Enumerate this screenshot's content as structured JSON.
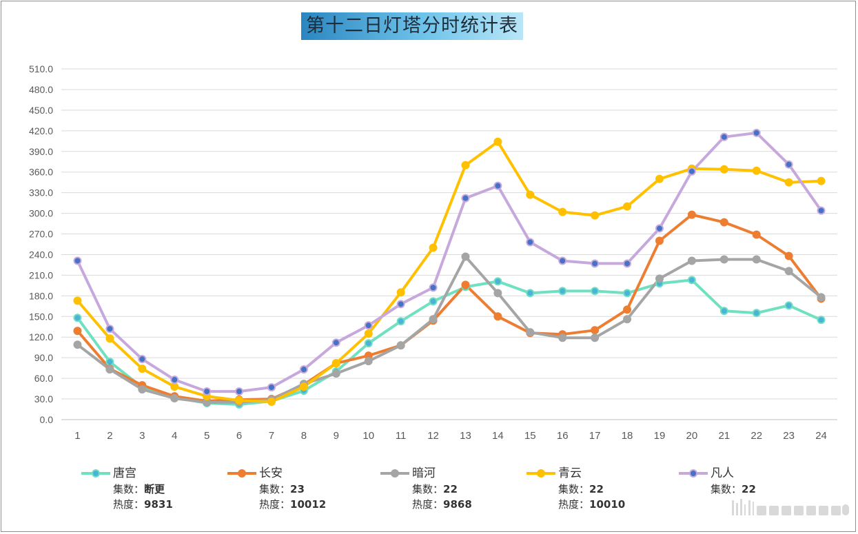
{
  "chart_data": {
    "type": "line",
    "title": "第十二日灯塔分时统计表",
    "categories": [
      "1",
      "2",
      "3",
      "4",
      "5",
      "6",
      "7",
      "8",
      "9",
      "10",
      "11",
      "12",
      "13",
      "14",
      "15",
      "16",
      "17",
      "18",
      "19",
      "20",
      "21",
      "22",
      "23",
      "24"
    ],
    "ylim": [
      0,
      510
    ],
    "yticks": [
      "0.0",
      "30.0",
      "60.0",
      "90.0",
      "120.0",
      "150.0",
      "180.0",
      "210.0",
      "240.0",
      "270.0",
      "300.0",
      "330.0",
      "360.0",
      "390.0",
      "420.0",
      "450.0",
      "480.0",
      "510.0"
    ],
    "grid": true,
    "legend_position": "bottom",
    "series": [
      {
        "name": "唐宫",
        "color": "#6fe0c0",
        "marker": "#4bb3d8",
        "values": [
          148,
          84,
          47,
          32,
          24,
          22,
          27,
          42,
          70,
          111,
          143,
          172,
          193,
          201,
          184,
          187,
          187,
          184,
          198,
          203,
          158,
          155,
          166,
          145
        ],
        "info_label_1": "集数：",
        "info_value_1": "断更",
        "info_label_2": "热度：",
        "info_value_2": "9831"
      },
      {
        "name": "长安",
        "color": "#ed7d31",
        "marker": "#ed7d31",
        "values": [
          129,
          74,
          50,
          34,
          27,
          29,
          30,
          51,
          82,
          93,
          108,
          144,
          196,
          150,
          126,
          124,
          130,
          160,
          260,
          298,
          287,
          269,
          238,
          176
        ],
        "info_label_1": "集数：",
        "info_value_1": "23",
        "info_label_2": "热度：",
        "info_value_2": "10012"
      },
      {
        "name": "暗河",
        "color": "#a5a5a5",
        "marker": "#a5a5a5",
        "values": [
          109,
          73,
          44,
          31,
          25,
          25,
          29,
          52,
          67,
          85,
          108,
          146,
          237,
          184,
          127,
          119,
          119,
          146,
          205,
          231,
          233,
          233,
          216,
          178
        ],
        "info_label_1": "集数：",
        "info_value_1": "22",
        "info_label_2": "热度：",
        "info_value_2": "9868"
      },
      {
        "name": "青云",
        "color": "#ffc000",
        "marker": "#ffc000",
        "values": [
          173,
          118,
          74,
          48,
          34,
          28,
          26,
          48,
          82,
          125,
          185,
          250,
          370,
          404,
          327,
          302,
          297,
          310,
          350,
          365,
          364,
          362,
          345,
          347
        ],
        "info_label_1": "集数：",
        "info_value_1": "22",
        "info_label_2": "热度：",
        "info_value_2": "10010"
      },
      {
        "name": "凡人",
        "color": "#c6a8dc",
        "marker": "#4472c4",
        "values": [
          231,
          132,
          88,
          58,
          41,
          41,
          47,
          73,
          112,
          137,
          168,
          192,
          322,
          340,
          258,
          231,
          227,
          227,
          278,
          361,
          411,
          417,
          371,
          304
        ],
        "info_label_1": "集数：",
        "info_value_1": "22"
      }
    ]
  }
}
